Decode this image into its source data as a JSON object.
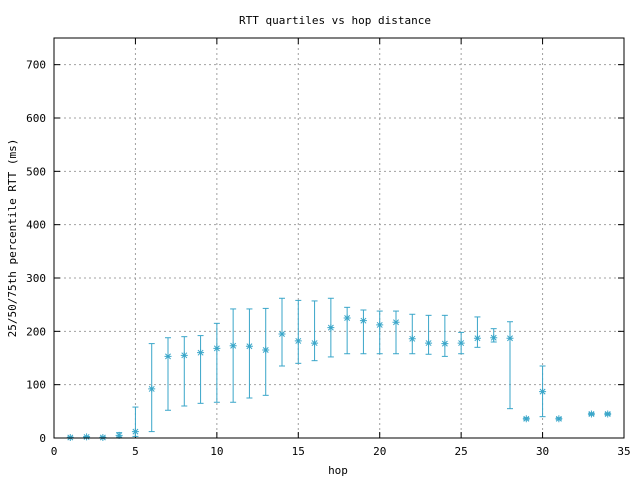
{
  "chart_data": {
    "type": "scatter",
    "title": "RTT quartiles vs hop distance",
    "xlabel": "hop",
    "ylabel": "25/50/75th percentile RTT (ms)",
    "xlim": [
      0,
      35
    ],
    "ylim": [
      0,
      750
    ],
    "xticks": [
      0,
      5,
      10,
      15,
      20,
      25,
      30,
      35
    ],
    "yticks": [
      0,
      100,
      200,
      300,
      400,
      500,
      600,
      700
    ],
    "grid": true,
    "legend": "none",
    "color": "#3aa6c9",
    "series": [
      {
        "points": [
          {
            "x": 1,
            "p25": 0,
            "median": 1,
            "p75": 2
          },
          {
            "x": 2,
            "p25": 1,
            "median": 2,
            "p75": 3
          },
          {
            "x": 3,
            "p25": 0,
            "median": 1,
            "p75": 2
          },
          {
            "x": 4,
            "p25": 2,
            "median": 5,
            "p75": 10
          },
          {
            "x": 5,
            "p25": 3,
            "median": 12,
            "p75": 58
          },
          {
            "x": 6,
            "p25": 12,
            "median": 92,
            "p75": 177
          },
          {
            "x": 7,
            "p25": 52,
            "median": 153,
            "p75": 188
          },
          {
            "x": 8,
            "p25": 60,
            "median": 155,
            "p75": 190
          },
          {
            "x": 9,
            "p25": 65,
            "median": 160,
            "p75": 192
          },
          {
            "x": 10,
            "p25": 67,
            "median": 168,
            "p75": 215
          },
          {
            "x": 11,
            "p25": 67,
            "median": 173,
            "p75": 242
          },
          {
            "x": 12,
            "p25": 75,
            "median": 172,
            "p75": 242
          },
          {
            "x": 13,
            "p25": 80,
            "median": 165,
            "p75": 243
          },
          {
            "x": 14,
            "p25": 135,
            "median": 195,
            "p75": 262
          },
          {
            "x": 15,
            "p25": 140,
            "median": 182,
            "p75": 258
          },
          {
            "x": 16,
            "p25": 145,
            "median": 178,
            "p75": 257
          },
          {
            "x": 17,
            "p25": 152,
            "median": 207,
            "p75": 262
          },
          {
            "x": 18,
            "p25": 158,
            "median": 225,
            "p75": 245
          },
          {
            "x": 19,
            "p25": 158,
            "median": 220,
            "p75": 240
          },
          {
            "x": 20,
            "p25": 158,
            "median": 212,
            "p75": 238
          },
          {
            "x": 21,
            "p25": 158,
            "median": 217,
            "p75": 238
          },
          {
            "x": 22,
            "p25": 158,
            "median": 186,
            "p75": 232
          },
          {
            "x": 23,
            "p25": 157,
            "median": 178,
            "p75": 230
          },
          {
            "x": 24,
            "p25": 153,
            "median": 177,
            "p75": 230
          },
          {
            "x": 25,
            "p25": 158,
            "median": 178,
            "p75": 198
          },
          {
            "x": 26,
            "p25": 170,
            "median": 187,
            "p75": 227
          },
          {
            "x": 27,
            "p25": 180,
            "median": 188,
            "p75": 205
          },
          {
            "x": 28,
            "p25": 55,
            "median": 187,
            "p75": 218
          },
          {
            "x": 29,
            "p25": 34,
            "median": 36,
            "p75": 38
          },
          {
            "x": 30,
            "p25": 40,
            "median": 87,
            "p75": 135
          },
          {
            "x": 31,
            "p25": 34,
            "median": 36,
            "p75": 38
          },
          {
            "x": 33,
            "p25": 43,
            "median": 45,
            "p75": 47
          },
          {
            "x": 34,
            "p25": 43,
            "median": 45,
            "p75": 47
          }
        ]
      }
    ]
  }
}
